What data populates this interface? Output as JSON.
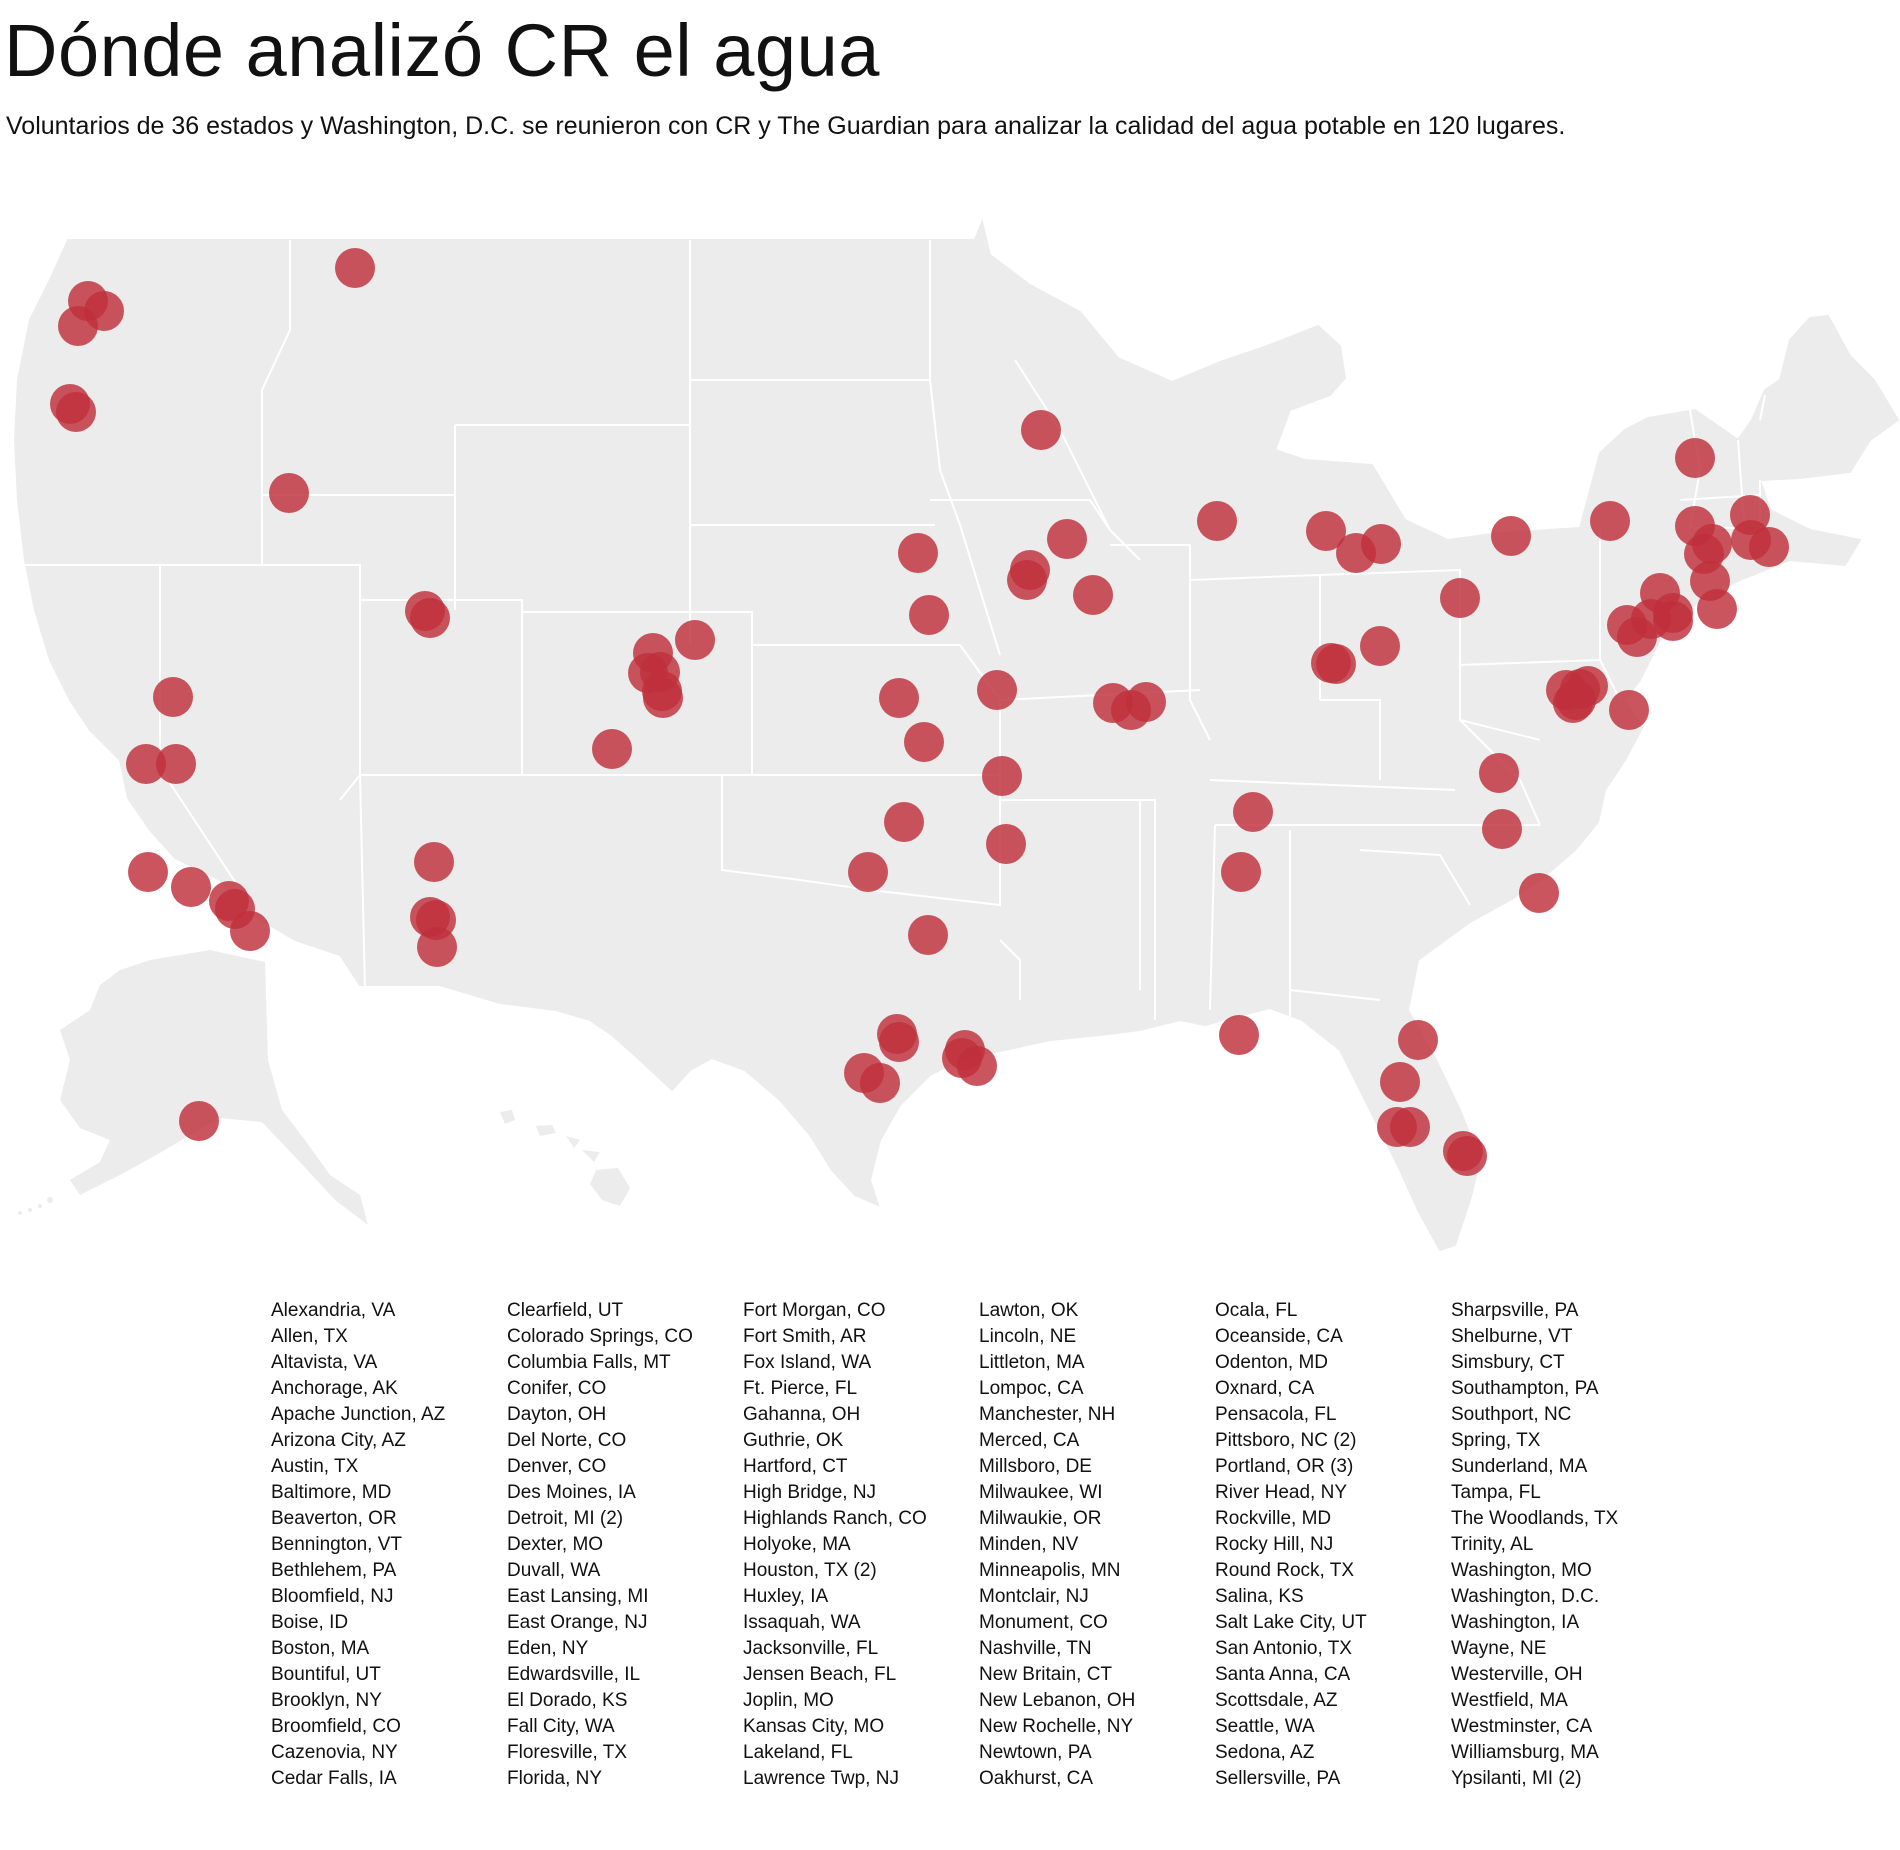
{
  "title": "Dónde analizó CR el agua",
  "subtitle": "Voluntarios de 36 estados y Washington, D.C. se reunieron con CR y The Guardian para analizar la calidad del agua potable en 120 lugares.",
  "colors": {
    "marker": "#c0303c",
    "land": "#ececec",
    "borders": "#ffffff"
  },
  "locations": [
    [
      "Alexandria, VA",
      "Allen, TX",
      "Altavista, VA",
      "Anchorage, AK",
      "Apache Junction, AZ",
      "Arizona City, AZ",
      "Austin, TX",
      "Baltimore, MD",
      "Beaverton, OR",
      "Bennington, VT",
      "Bethlehem, PA",
      "Bloomfield, NJ",
      "Boise, ID",
      "Boston, MA",
      "Bountiful, UT",
      "Brooklyn, NY",
      "Broomfield, CO",
      "Cazenovia, NY",
      "Cedar Falls, IA"
    ],
    [
      "Clearfield, UT",
      "Colorado Springs, CO",
      "Columbia Falls, MT",
      "Conifer, CO",
      "Dayton, OH",
      "Del Norte, CO",
      "Denver, CO",
      "Des Moines, IA",
      "Detroit, MI (2)",
      "Dexter, MO",
      "Duvall, WA",
      "East Lansing, MI",
      "East Orange, NJ",
      "Eden, NY",
      "Edwardsville, IL",
      "El Dorado, KS",
      "Fall City, WA",
      "Floresville, TX",
      "Florida, NY"
    ],
    [
      "Fort Morgan, CO",
      "Fort Smith, AR",
      "Fox Island, WA",
      "Ft. Pierce, FL",
      "Gahanna, OH",
      "Guthrie, OK",
      "Hartford, CT",
      "High Bridge, NJ",
      "Highlands Ranch, CO",
      "Holyoke, MA",
      "Houston, TX (2)",
      "Huxley, IA",
      "Issaquah, WA",
      "Jacksonville, FL",
      "Jensen Beach, FL",
      "Joplin, MO",
      "Kansas City, MO",
      "Lakeland, FL",
      "Lawrence Twp, NJ"
    ],
    [
      "Lawton, OK",
      "Lincoln, NE",
      "Littleton, MA",
      "Lompoc, CA",
      "Manchester, NH",
      "Merced, CA",
      "Millsboro, DE",
      "Milwaukee, WI",
      "Milwaukie, OR",
      "Minden, NV",
      "Minneapolis, MN",
      "Montclair, NJ",
      "Monument, CO",
      "Nashville, TN",
      "New Britain, CT",
      "New Lebanon, OH",
      "New Rochelle, NY",
      "Newtown, PA",
      "Oakhurst, CA"
    ],
    [
      "Ocala, FL",
      "Oceanside, CA",
      "Odenton, MD",
      "Oxnard, CA",
      "Pensacola, FL",
      "Pittsboro, NC (2)",
      "Portland, OR (3)",
      "River Head, NY",
      "Rockville, MD",
      "Rocky Hill, NJ",
      "Round Rock, TX",
      "Salina, KS",
      "Salt Lake City, UT",
      "San Antonio, TX",
      "Santa Anna, CA",
      "Scottsdale, AZ",
      "Seattle, WA",
      "Sedona, AZ",
      "Sellersville, PA"
    ],
    [
      "Sharpsville, PA",
      "Shelburne, VT",
      "Simsbury, CT",
      "Southampton, PA",
      "Southport, NC",
      "Spring, TX",
      "Sunderland, MA",
      "Tampa, FL",
      "The Woodlands, TX",
      "Trinity, AL",
      "Washington, MO",
      "Washington, D.C.",
      "Washington, IA",
      "Wayne, NE",
      "Westerville, OH",
      "Westfield, MA",
      "Westminster, CA",
      "Williamsburg, MA",
      "Ypsilanti, MI (2)"
    ]
  ]
}
